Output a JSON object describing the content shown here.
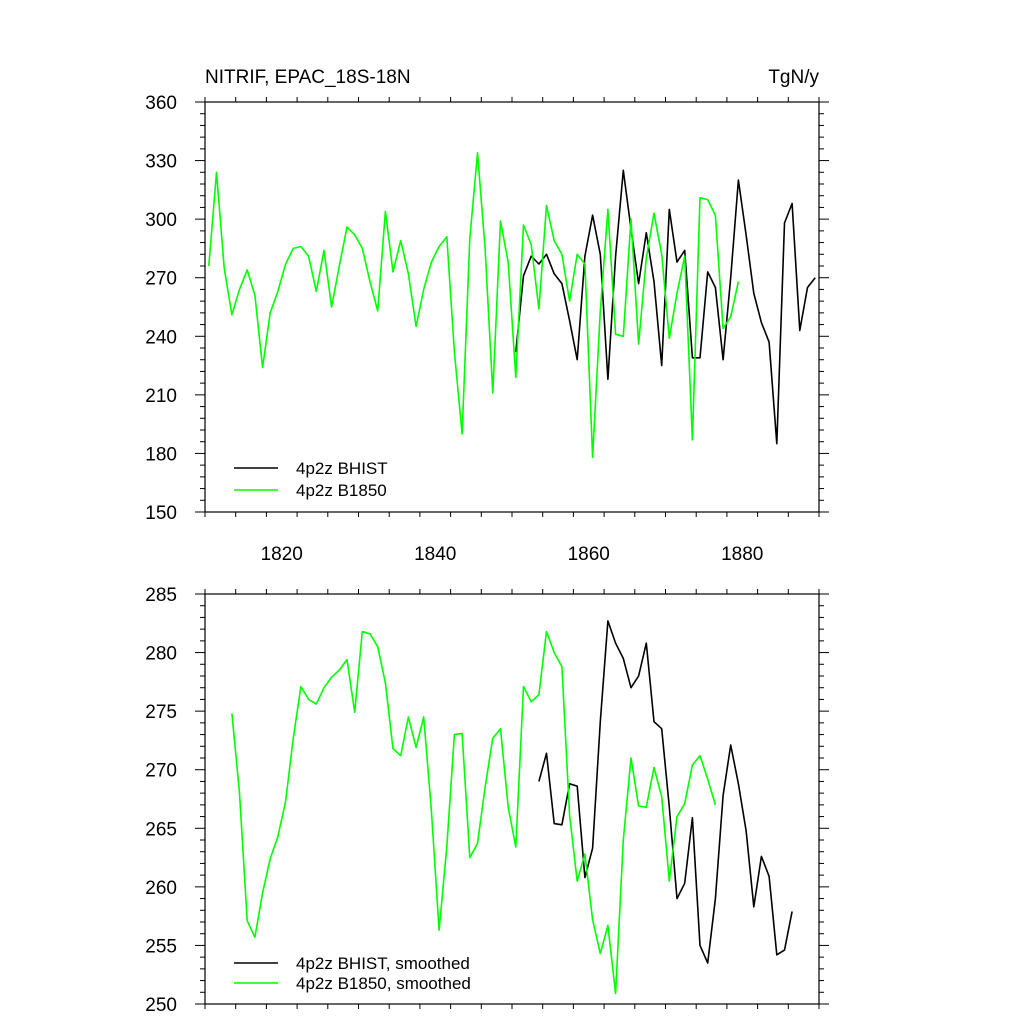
{
  "chart_data": [
    {
      "type": "line",
      "title": "NITRIF, EPAC_18S-18N",
      "units": "TgN/y",
      "xlim": [
        1810,
        1890
      ],
      "ylim": [
        150,
        360
      ],
      "y_ticks": [
        150,
        180,
        210,
        240,
        270,
        300,
        330,
        360
      ],
      "x_ticks": [
        1820,
        1840,
        1860,
        1880
      ],
      "y_tick_labels": [
        "150",
        "180",
        "210",
        "240",
        "270",
        "300",
        "330",
        "360"
      ],
      "x_tick_labels": [
        "1820",
        "1840",
        "1860",
        "1880"
      ],
      "legend_position": "bottom-left",
      "series": [
        {
          "name": "4p2z BHIST",
          "color": "#000000",
          "x": [
            1850.5,
            1851.5,
            1852.5,
            1853.5,
            1854.5,
            1855.5,
            1856.5,
            1857.5,
            1858.5,
            1859.5,
            1860.5,
            1861.5,
            1862.5,
            1863.5,
            1864.5,
            1865.5,
            1866.5,
            1867.5,
            1868.5,
            1869.5,
            1870.5,
            1871.5,
            1872.5,
            1873.5,
            1874.5,
            1875.5,
            1876.5,
            1877.5,
            1878.5,
            1879.5,
            1880.5,
            1881.5,
            1882.5,
            1883.5,
            1884.5,
            1885.5,
            1886.5,
            1887.5,
            1888.5,
            1889.5
          ],
          "values": [
            232,
            271,
            281,
            277,
            282,
            272,
            267,
            248,
            228,
            281,
            302,
            282,
            218,
            281,
            325,
            295,
            267,
            293,
            268,
            225,
            305,
            278,
            284,
            229,
            229,
            273,
            265,
            228,
            270,
            320,
            292,
            262,
            247,
            237,
            185,
            298,
            308,
            243,
            265,
            270
          ]
        },
        {
          "name": "4p2z B1850",
          "color": "#00ff00",
          "x": [
            1810.5,
            1811.5,
            1812.5,
            1813.5,
            1814.5,
            1815.5,
            1816.5,
            1817.5,
            1818.5,
            1819.5,
            1820.5,
            1821.5,
            1822.5,
            1823.5,
            1824.5,
            1825.5,
            1826.5,
            1827.5,
            1828.5,
            1829.5,
            1830.5,
            1831.5,
            1832.5,
            1833.5,
            1834.5,
            1835.5,
            1836.5,
            1837.5,
            1838.5,
            1839.5,
            1840.5,
            1841.5,
            1842.5,
            1843.5,
            1844.5,
            1845.5,
            1846.5,
            1847.5,
            1848.5,
            1849.5,
            1850.5,
            1851.5,
            1852.5,
            1853.5,
            1854.5,
            1855.5,
            1856.5,
            1857.5,
            1858.5,
            1859.5,
            1860.5,
            1861.5,
            1862.5,
            1863.5,
            1864.5,
            1865.5,
            1866.5,
            1867.5,
            1868.5,
            1869.5,
            1870.5,
            1871.5,
            1872.5,
            1873.5,
            1874.5,
            1875.5,
            1876.5,
            1877.5,
            1878.5,
            1879.5
          ],
          "values": [
            276,
            324,
            275,
            251,
            264,
            274,
            261,
            224,
            252,
            263,
            277,
            285,
            286,
            281,
            263,
            284,
            255,
            276,
            296,
            292,
            285,
            268,
            253,
            304,
            273,
            289,
            272,
            245,
            264,
            278,
            286,
            291,
            232,
            190,
            290,
            334,
            285,
            211,
            299,
            278,
            219,
            297,
            287,
            254,
            307,
            289,
            282,
            258,
            282,
            277,
            178,
            253,
            305,
            241,
            240,
            300,
            236,
            280,
            303,
            282,
            239,
            262,
            281,
            187,
            311,
            310,
            302,
            244,
            250,
            268
          ]
        }
      ]
    },
    {
      "type": "line",
      "title": "",
      "xlim": [
        1810,
        1890
      ],
      "ylim": [
        250,
        285
      ],
      "y_ticks": [
        250,
        255,
        260,
        265,
        270,
        275,
        280,
        285
      ],
      "x_ticks": [
        1820,
        1840,
        1860,
        1880
      ],
      "y_tick_labels": [
        "250",
        "255",
        "260",
        "265",
        "270",
        "275",
        "280",
        "285"
      ],
      "legend_position": "bottom-left",
      "series": [
        {
          "name": "4p2z BHIST, smoothed",
          "color": "#000000",
          "x": [
            1853.5,
            1854.5,
            1855.5,
            1856.5,
            1857.5,
            1858.5,
            1859.5,
            1860.5,
            1861.5,
            1862.5,
            1863.5,
            1864.5,
            1865.5,
            1866.5,
            1867.5,
            1868.5,
            1869.5,
            1870.5,
            1871.5,
            1872.5,
            1873.5,
            1874.5,
            1875.5,
            1876.5,
            1877.5,
            1878.5,
            1879.5,
            1880.5,
            1881.5,
            1882.5,
            1883.5,
            1884.5,
            1885.5,
            1886.5
          ],
          "values": [
            269,
            271.4,
            265.4,
            265.3,
            268.8,
            268.6,
            260.8,
            263.3,
            274.1,
            282.7,
            280.8,
            279.5,
            277,
            278,
            280.8,
            274.1,
            273.5,
            266.8,
            259,
            260.3,
            265.9,
            255,
            253.5,
            259,
            267.8,
            272.1,
            268.8,
            264.8,
            258.3,
            262.6,
            260.9,
            254.2,
            254.6,
            257.9
          ]
        },
        {
          "name": "4p2z B1850, smoothed",
          "color": "#00ff00",
          "x": [
            1813.5,
            1814.5,
            1815.5,
            1816.5,
            1817.5,
            1818.5,
            1819.5,
            1820.5,
            1821.5,
            1822.5,
            1823.5,
            1824.5,
            1825.5,
            1826.5,
            1827.5,
            1828.5,
            1829.5,
            1830.5,
            1831.5,
            1832.5,
            1833.5,
            1834.5,
            1835.5,
            1836.5,
            1837.5,
            1838.5,
            1839.5,
            1840.5,
            1841.5,
            1842.5,
            1843.5,
            1844.5,
            1845.5,
            1846.5,
            1847.5,
            1848.5,
            1849.5,
            1850.5,
            1851.5,
            1852.5,
            1853.5,
            1854.5,
            1855.5,
            1856.5,
            1857.5,
            1858.5,
            1859.5,
            1860.5,
            1861.5,
            1862.5,
            1863.5,
            1864.5,
            1865.5,
            1866.5,
            1867.5,
            1868.5,
            1869.5,
            1870.5,
            1871.5,
            1872.5,
            1873.5,
            1874.5,
            1875.5,
            1876.5
          ],
          "values": [
            274.8,
            268,
            257.1,
            255.7,
            259.5,
            262.4,
            264.3,
            267.3,
            272.7,
            277.1,
            276,
            275.6,
            277,
            277.9,
            278.5,
            279.4,
            274.9,
            281.8,
            281.6,
            280.5,
            277.4,
            271.8,
            271.2,
            274.5,
            271.9,
            274.5,
            266.5,
            256.3,
            263.4,
            273,
            273.1,
            262.5,
            263.7,
            268.5,
            272.7,
            273.5,
            266.8,
            263.4,
            277.1,
            275.8,
            276.4,
            281.8,
            280,
            278.8,
            266.1,
            260.5,
            262.8,
            257.2,
            254.3,
            256.7,
            250.9,
            264,
            271,
            266.9,
            266.8,
            270.2,
            267.7,
            260.5,
            266,
            267.1,
            270.4,
            271.2,
            269.2,
            267
          ]
        }
      ]
    }
  ]
}
